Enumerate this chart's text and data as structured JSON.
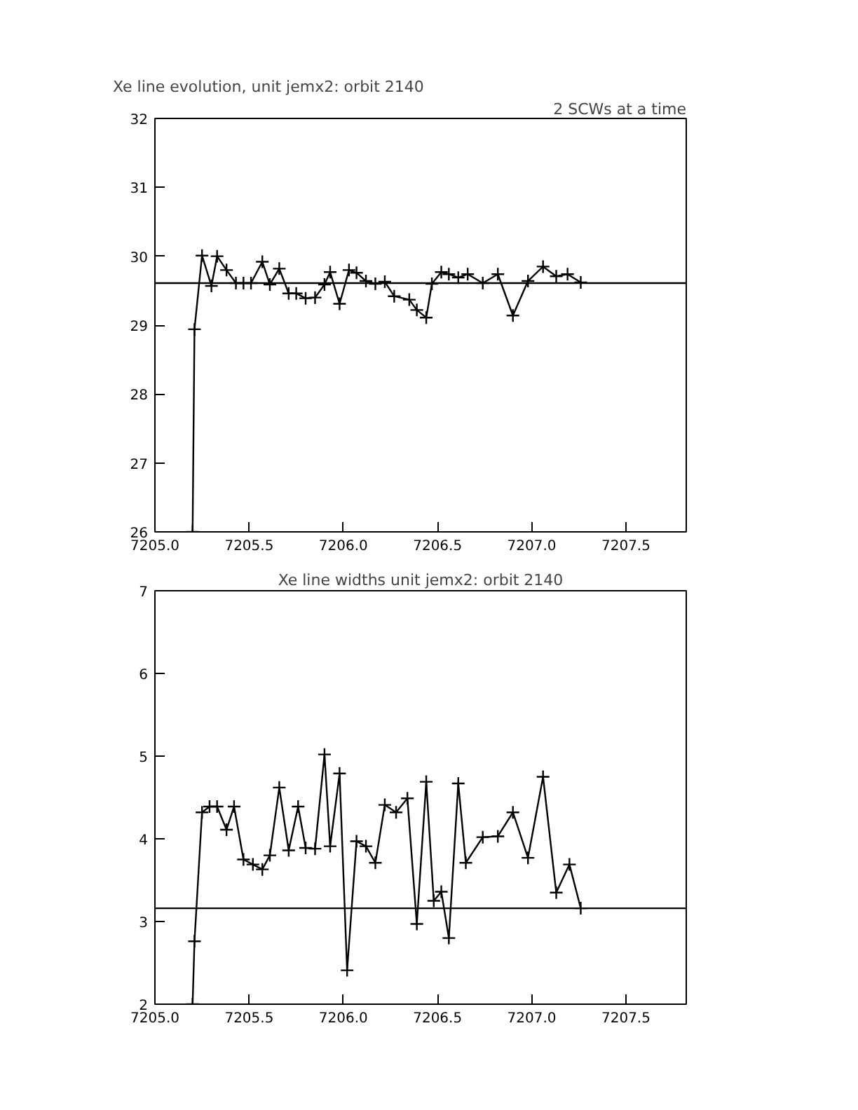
{
  "chart_data": [
    {
      "type": "line",
      "title": "Xe line evolution, unit jemx2: orbit 2140",
      "subtitle": "2 SCWs at a time",
      "marker": "cross",
      "grid": false,
      "xlim": [
        7205.0,
        7207.82
      ],
      "xticks": [
        {
          "value": 7205.0,
          "label": "7205.0"
        },
        {
          "value": 7205.5,
          "label": "7205.5"
        },
        {
          "value": 7206.0,
          "label": "7206.0"
        },
        {
          "value": 7206.5,
          "label": "7206.5"
        },
        {
          "value": 7207.0,
          "label": "7207.0"
        },
        {
          "value": 7207.5,
          "label": "7207.5"
        }
      ],
      "ylim": [
        26,
        32
      ],
      "yticks": [
        26,
        27,
        28,
        29,
        30,
        31,
        32
      ],
      "ref_lines": [
        {
          "axis": "y",
          "value": 29.61,
          "color": "#000000"
        }
      ],
      "series": [
        {
          "color": "#000000",
          "x": [
            7205.2,
            7205.21,
            7205.25,
            7205.3,
            7205.33,
            7205.38,
            7205.43,
            7205.47,
            7205.51,
            7205.57,
            7205.61,
            7205.66,
            7205.71,
            7205.75,
            7205.8,
            7205.85,
            7205.9,
            7205.93,
            7205.98,
            7206.03,
            7206.07,
            7206.12,
            7206.17,
            7206.22,
            7206.27,
            7206.35,
            7206.39,
            7206.44,
            7206.47,
            7206.52,
            7206.56,
            7206.61,
            7206.66,
            7206.74,
            7206.82,
            7206.9,
            7206.98,
            7207.06,
            7207.13,
            7207.19,
            7207.26
          ],
          "values": [
            26,
            28.94,
            30.01,
            29.57,
            30.0,
            29.8,
            29.61,
            29.61,
            29.61,
            29.92,
            29.59,
            29.82,
            29.46,
            29.46,
            29.39,
            29.4,
            29.59,
            29.77,
            29.31,
            29.8,
            29.76,
            29.64,
            29.6,
            29.63,
            29.42,
            29.37,
            29.22,
            29.11,
            29.6,
            29.77,
            29.74,
            29.69,
            29.74,
            29.61,
            29.74,
            29.14,
            29.64,
            29.85,
            29.71,
            29.74,
            29.62
          ]
        }
      ]
    },
    {
      "type": "line",
      "title": "Xe line widths unit jemx2: orbit 2140",
      "marker": "cross",
      "grid": false,
      "xlim": [
        7205.0,
        7207.82
      ],
      "xticks": [
        {
          "value": 7205.0,
          "label": "7205.0"
        },
        {
          "value": 7205.5,
          "label": "7205.5"
        },
        {
          "value": 7206.0,
          "label": "7206.0"
        },
        {
          "value": 7206.5,
          "label": "7206.5"
        },
        {
          "value": 7207.0,
          "label": "7207.0"
        },
        {
          "value": 7207.5,
          "label": "7207.5"
        }
      ],
      "ylim": [
        2,
        7
      ],
      "yticks": [
        2,
        3,
        4,
        5,
        6,
        7
      ],
      "ref_lines": [
        {
          "axis": "y",
          "value": 3.16,
          "color": "#000000"
        }
      ],
      "series": [
        {
          "color": "#000000",
          "x": [
            7205.2,
            7205.21,
            7205.25,
            7205.29,
            7205.33,
            7205.38,
            7205.42,
            7205.47,
            7205.52,
            7205.57,
            7205.61,
            7205.66,
            7205.71,
            7205.76,
            7205.8,
            7205.85,
            7205.9,
            7205.93,
            7205.98,
            7206.02,
            7206.07,
            7206.12,
            7206.17,
            7206.22,
            7206.28,
            7206.34,
            7206.39,
            7206.44,
            7206.48,
            7206.52,
            7206.56,
            7206.61,
            7206.65,
            7206.74,
            7206.82,
            7206.9,
            7206.98,
            7207.06,
            7207.13,
            7207.2,
            7207.26
          ],
          "values": [
            2,
            2.76,
            4.32,
            4.39,
            4.39,
            4.11,
            4.39,
            3.75,
            3.69,
            3.63,
            3.8,
            4.62,
            3.86,
            4.39,
            3.89,
            3.88,
            5.02,
            3.91,
            4.79,
            2.41,
            3.97,
            3.91,
            3.71,
            4.41,
            4.32,
            4.49,
            2.97,
            4.69,
            3.25,
            3.36,
            2.8,
            4.67,
            3.71,
            4.02,
            4.03,
            4.32,
            3.77,
            4.75,
            3.35,
            3.69,
            3.16
          ]
        }
      ]
    }
  ]
}
